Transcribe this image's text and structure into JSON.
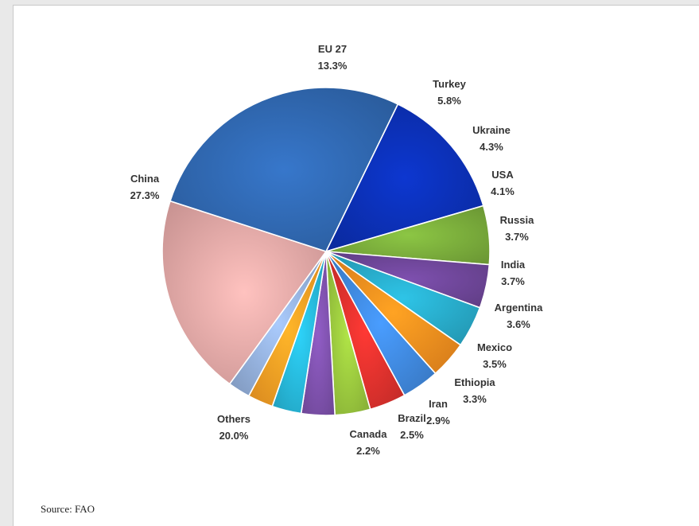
{
  "source_text": "Source: FAO",
  "chart_data": {
    "type": "pie",
    "title": "",
    "unit": "%",
    "slices": [
      {
        "label": "EU 27",
        "value": 13.3,
        "value_text": "13.3%",
        "color": "#0b2fb0"
      },
      {
        "label": "Turkey",
        "value": 5.8,
        "value_text": "5.8%",
        "color": "#77a83a"
      },
      {
        "label": "Ukraine",
        "value": 4.3,
        "value_text": "4.3%",
        "color": "#6b4494"
      },
      {
        "label": "USA",
        "value": 4.1,
        "value_text": "4.1%",
        "color": "#27a6c4"
      },
      {
        "label": "Russia",
        "value": 3.7,
        "value_text": "3.7%",
        "color": "#f08a1e"
      },
      {
        "label": "India",
        "value": 3.7,
        "value_text": "3.7%",
        "color": "#3e85d8"
      },
      {
        "label": "Argentina",
        "value": 3.6,
        "value_text": "3.6%",
        "color": "#d8302c"
      },
      {
        "label": "Mexico",
        "value": 3.5,
        "value_text": "3.5%",
        "color": "#96c23c"
      },
      {
        "label": "Ethiopia",
        "value": 3.3,
        "value_text": "3.3%",
        "color": "#7b4fa8"
      },
      {
        "label": "Iran",
        "value": 2.9,
        "value_text": "2.9%",
        "color": "#26b3d4"
      },
      {
        "label": "Brazil",
        "value": 2.5,
        "value_text": "2.5%",
        "color": "#f59a23"
      },
      {
        "label": "Canada",
        "value": 2.2,
        "value_text": "2.2%",
        "color": "#90acd6"
      },
      {
        "label": "Others",
        "value": 20.0,
        "value_text": "20.0%",
        "color": "#e0a4a2"
      },
      {
        "label": "China",
        "value": 27.3,
        "value_text": "27.3%",
        "color": "#2f65ac"
      }
    ],
    "eu_flag_star_color": "#ffd400"
  }
}
